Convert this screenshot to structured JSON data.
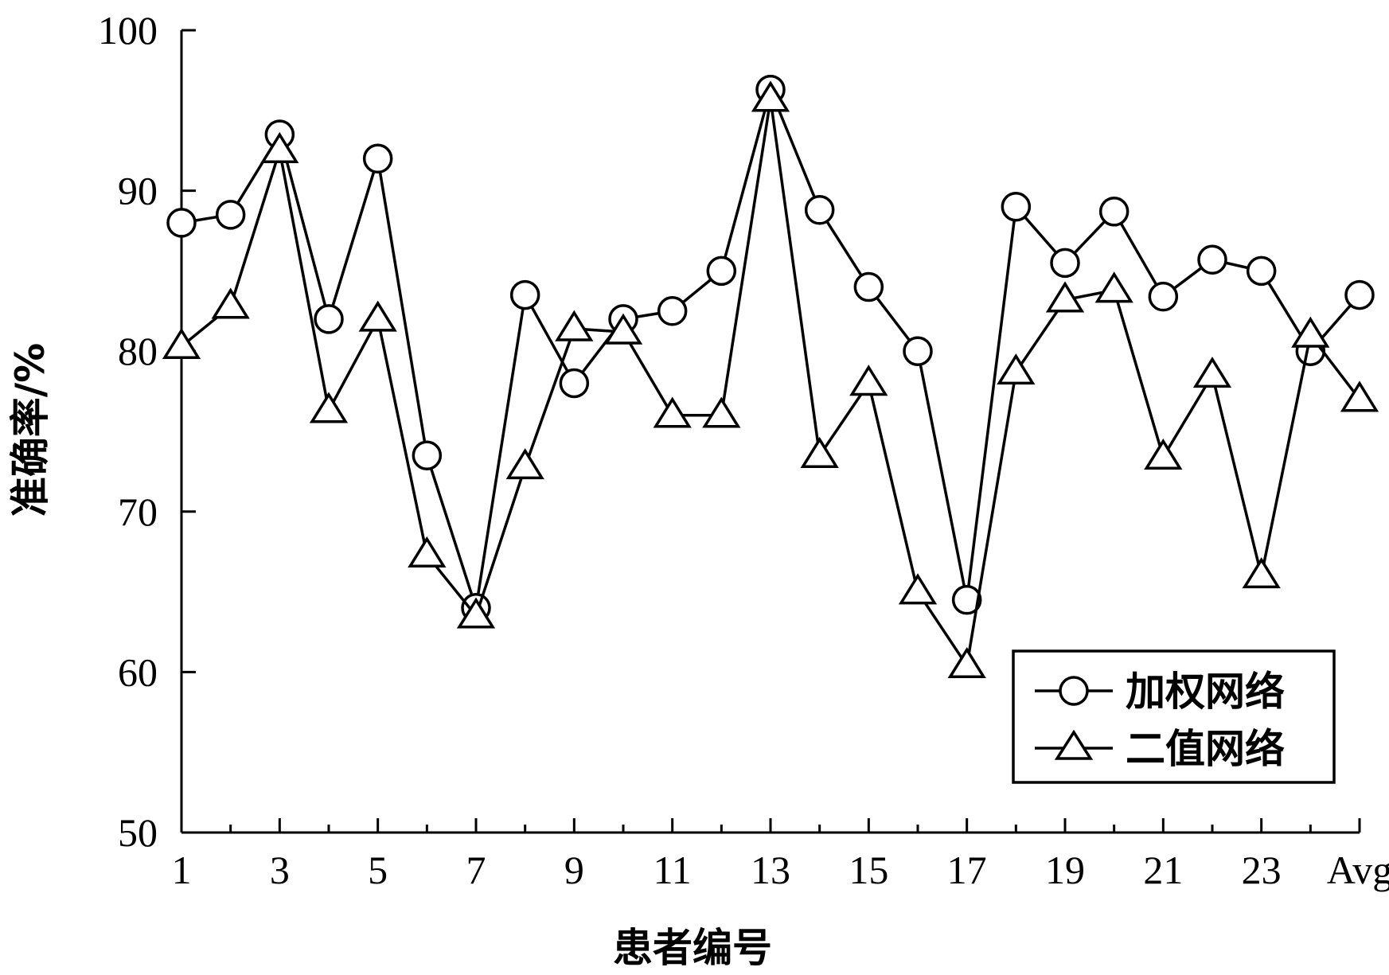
{
  "chart_data": {
    "type": "line",
    "title": "",
    "xlabel": "患者编号",
    "ylabel": "准确率/%",
    "categories": [
      "1",
      "2",
      "3",
      "4",
      "5",
      "6",
      "7",
      "8",
      "9",
      "10",
      "11",
      "12",
      "13",
      "14",
      "15",
      "16",
      "17",
      "18",
      "19",
      "20",
      "21",
      "22",
      "23",
      "24",
      "Avg"
    ],
    "x_tick_labels": [
      "1",
      "3",
      "5",
      "7",
      "9",
      "11",
      "13",
      "15",
      "17",
      "19",
      "21",
      "23",
      "Avg"
    ],
    "y_ticks": [
      50,
      60,
      70,
      80,
      90,
      100
    ],
    "ylim": [
      50,
      100
    ],
    "grid": false,
    "legend_position": "bottom-right",
    "series": [
      {
        "name": "加权网络",
        "marker": "circle",
        "values": [
          88.0,
          88.5,
          93.5,
          82.0,
          92.0,
          73.5,
          64.0,
          83.5,
          78.0,
          82.0,
          82.5,
          85.0,
          96.3,
          88.8,
          84.0,
          80.0,
          64.5,
          89.0,
          85.5,
          88.7,
          83.4,
          85.7,
          85.0,
          80.0,
          83.5
        ]
      },
      {
        "name": "二值网络",
        "marker": "triangle",
        "values": [
          80.3,
          82.8,
          92.5,
          76.3,
          82.0,
          67.3,
          63.5,
          72.8,
          81.4,
          81.2,
          76.0,
          76.0,
          95.7,
          73.5,
          78.0,
          65.0,
          60.4,
          78.7,
          83.2,
          83.8,
          73.4,
          78.5,
          66.0,
          81.0,
          77.0
        ]
      }
    ]
  }
}
